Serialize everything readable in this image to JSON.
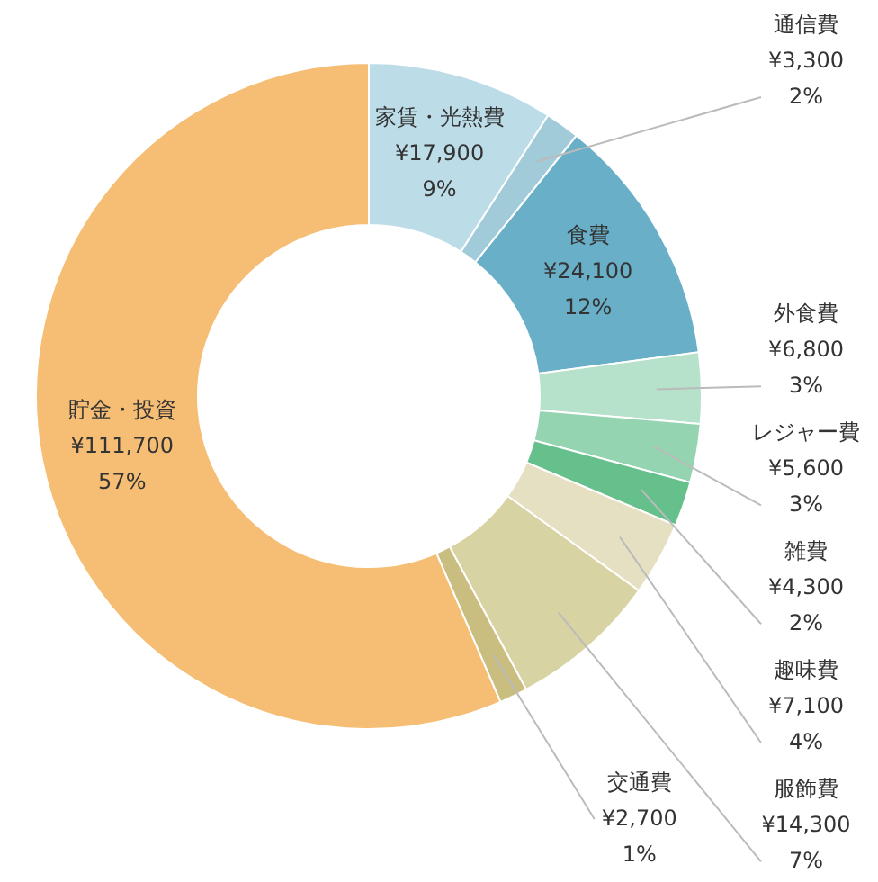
{
  "chart_data": {
    "type": "donut",
    "categories": [
      "家賃・光熱費",
      "通信費",
      "食費",
      "外食費",
      "レジャー費",
      "雑費",
      "趣味費",
      "服飾費",
      "交通費",
      "貯金・投資"
    ],
    "values": [
      17900,
      3300,
      24100,
      6800,
      5600,
      4300,
      7100,
      14300,
      2700,
      111700
    ],
    "colors": [
      "#bcdde8",
      "#a2cbda",
      "#6aafc8",
      "#b6e1cb",
      "#94d4b1",
      "#65c08b",
      "#e6e0c2",
      "#d8d3a3",
      "#c9bd80",
      "#f6be75"
    ],
    "value_labels": [
      "¥17,900\n9%",
      "¥3,300\n2%",
      "¥24,100\n12%",
      "¥6,800\n3%",
      "¥5,600\n3%",
      "¥4,300\n2%",
      "¥7,100\n4%",
      "¥14,300\n7%",
      "¥2,700\n1%",
      "¥111,700\n57%"
    ]
  }
}
